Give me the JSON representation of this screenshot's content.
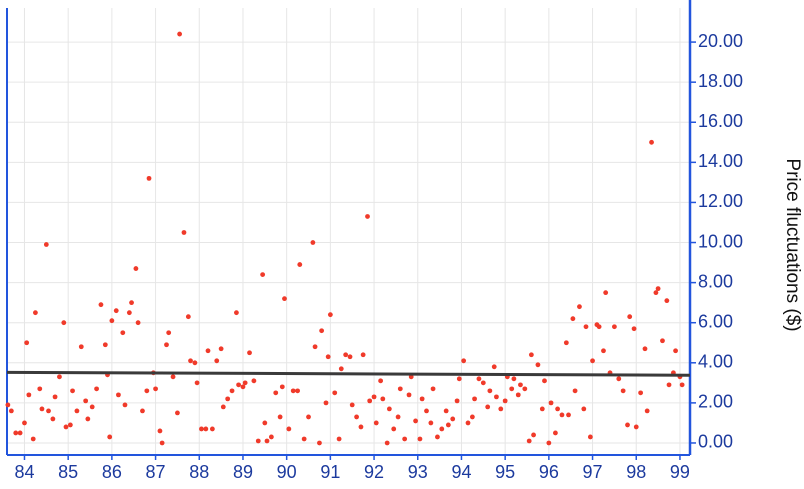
{
  "chart_data": {
    "type": "scatter",
    "y_axis_label": "Price fluctuations ($)",
    "color": "#f03a2a",
    "xlim": [
      83.6,
      99.23
    ],
    "ylim": [
      -0.6,
      21.7
    ],
    "xticks": [
      84,
      85,
      86,
      87,
      88,
      89,
      90,
      91,
      92,
      93,
      94,
      95,
      96,
      97,
      98,
      99
    ],
    "yticks": [
      {
        "value": 0,
        "label": "0.00"
      },
      {
        "value": 2,
        "label": "2.00"
      },
      {
        "value": 4,
        "label": "4.00"
      },
      {
        "value": 6,
        "label": "6.00"
      },
      {
        "value": 8,
        "label": "8.00"
      },
      {
        "value": 10,
        "label": "10.00"
      },
      {
        "value": 12,
        "label": "12.00"
      },
      {
        "value": 14,
        "label": "14.00"
      },
      {
        "value": 16,
        "label": "16.00"
      },
      {
        "value": 18,
        "label": "18.00"
      },
      {
        "value": 20,
        "label": "20.00"
      }
    ],
    "grid": true,
    "x": [
      83.62,
      83.7,
      83.8,
      83.9,
      84.0,
      84.05,
      84.1,
      84.2,
      84.25,
      84.35,
      84.4,
      84.5,
      84.55,
      84.65,
      84.7,
      84.8,
      84.9,
      84.95,
      85.05,
      85.1,
      85.2,
      85.3,
      85.4,
      85.45,
      85.55,
      85.65,
      85.75,
      85.85,
      85.9,
      85.95,
      86.0,
      86.1,
      86.15,
      86.25,
      86.3,
      86.4,
      86.45,
      86.55,
      86.6,
      86.7,
      86.8,
      86.85,
      86.95,
      87.0,
      87.1,
      87.15,
      87.25,
      87.3,
      87.4,
      87.5,
      87.55,
      87.65,
      87.75,
      87.8,
      87.9,
      87.95,
      88.05,
      88.15,
      88.2,
      88.3,
      88.4,
      88.5,
      88.55,
      88.65,
      88.75,
      88.85,
      88.9,
      89.0,
      89.05,
      89.15,
      89.25,
      89.35,
      89.45,
      89.5,
      89.55,
      89.65,
      89.75,
      89.85,
      89.9,
      89.95,
      90.05,
      90.15,
      90.25,
      90.3,
      90.4,
      90.5,
      90.6,
      90.65,
      90.75,
      90.8,
      90.9,
      90.95,
      91.0,
      91.1,
      91.2,
      91.25,
      91.35,
      91.45,
      91.5,
      91.6,
      91.7,
      91.75,
      91.85,
      91.9,
      92.0,
      92.05,
      92.15,
      92.2,
      92.3,
      92.35,
      92.45,
      92.55,
      92.6,
      92.7,
      92.8,
      92.85,
      92.95,
      93.05,
      93.1,
      93.2,
      93.3,
      93.35,
      93.45,
      93.55,
      93.65,
      93.7,
      93.8,
      93.9,
      93.95,
      94.05,
      94.15,
      94.25,
      94.3,
      94.4,
      94.5,
      94.6,
      94.65,
      94.75,
      94.8,
      94.9,
      95.0,
      95.05,
      95.15,
      95.2,
      95.3,
      95.35,
      95.45,
      95.55,
      95.6,
      95.65,
      95.75,
      95.85,
      95.9,
      96.0,
      96.05,
      96.15,
      96.2,
      96.3,
      96.4,
      96.45,
      96.55,
      96.6,
      96.7,
      96.8,
      96.85,
      96.95,
      97.0,
      97.1,
      97.15,
      97.25,
      97.3,
      97.4,
      97.5,
      97.6,
      97.7,
      97.8,
      97.85,
      97.95,
      98.0,
      98.1,
      98.2,
      98.25,
      98.35,
      98.45,
      98.5,
      98.6,
      98.7,
      98.75,
      98.85,
      98.9,
      99.0,
      99.05
    ],
    "values": [
      1.9,
      1.6,
      0.5,
      0.5,
      1.0,
      5.0,
      2.4,
      0.2,
      6.5,
      2.7,
      1.7,
      9.9,
      1.6,
      1.2,
      2.3,
      3.3,
      6.0,
      0.8,
      0.9,
      2.6,
      1.6,
      4.8,
      2.1,
      1.2,
      1.8,
      2.7,
      6.9,
      4.9,
      3.4,
      0.3,
      6.1,
      6.6,
      2.4,
      5.5,
      1.9,
      6.5,
      7.0,
      8.7,
      6.0,
      1.6,
      2.6,
      13.2,
      3.5,
      2.7,
      0.6,
      0.0,
      4.9,
      5.5,
      3.3,
      1.5,
      20.4,
      10.5,
      6.3,
      4.1,
      4.0,
      3.0,
      0.7,
      0.7,
      4.6,
      0.7,
      4.1,
      4.7,
      1.8,
      2.2,
      2.6,
      6.5,
      2.9,
      2.8,
      3.0,
      4.5,
      3.1,
      0.1,
      8.4,
      1.0,
      0.1,
      0.3,
      2.5,
      1.3,
      2.8,
      7.2,
      0.7,
      2.6,
      2.6,
      8.9,
      0.2,
      1.3,
      10.0,
      4.8,
      0.0,
      5.6,
      2.0,
      4.3,
      6.4,
      2.5,
      0.2,
      3.7,
      4.4,
      4.3,
      1.9,
      1.3,
      0.8,
      4.4,
      11.3,
      2.1,
      2.3,
      1.0,
      3.1,
      2.2,
      0.0,
      1.7,
      0.7,
      1.3,
      2.7,
      0.2,
      2.4,
      3.3,
      1.1,
      0.2,
      2.2,
      1.6,
      1.0,
      2.7,
      0.3,
      0.7,
      1.6,
      0.9,
      1.2,
      2.1,
      3.2,
      4.1,
      1.0,
      1.3,
      2.2,
      3.2,
      3.0,
      1.8,
      2.6,
      3.8,
      2.3,
      1.7,
      2.1,
      3.3,
      2.7,
      3.2,
      2.4,
      2.9,
      2.7,
      0.1,
      4.4,
      0.4,
      3.9,
      1.7,
      3.1,
      0.0,
      2.0,
      0.5,
      1.7,
      1.4,
      5.0,
      1.4,
      6.2,
      2.6,
      6.8,
      1.7,
      5.8,
      0.3,
      4.1,
      5.9,
      5.8,
      4.6,
      7.5,
      3.5,
      5.8,
      3.2,
      2.6,
      0.9,
      6.3,
      5.7,
      0.8,
      2.5,
      4.7,
      1.6,
      15.0,
      7.5,
      7.7,
      5.1,
      7.1,
      2.9,
      3.5,
      4.6,
      3.3,
      2.9
    ],
    "trend_line": {
      "x": [
        83.6,
        99.23
      ],
      "values": [
        3.52,
        3.38
      ],
      "color": "#3a3a3a"
    }
  }
}
